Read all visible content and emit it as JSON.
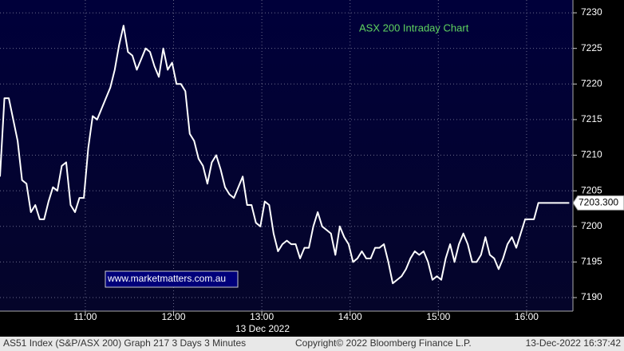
{
  "chart_data": {
    "type": "line",
    "title": "ASX 200 Intraday Chart",
    "watermark": "www.marketmatters.com.au",
    "x_axis_date": "13 Dec 2022",
    "footer": {
      "left": "AS51 Index (S&P/ASX 200) Graph 217 3 Days 3 Minutes",
      "center": "Copyright© 2022 Bloomberg Finance L.P.",
      "right": "13-Dec-2022 16:37:42"
    },
    "last_value": {
      "value": 7203.3,
      "label": "7203.300"
    },
    "grid": true,
    "color": "#ffffff",
    "x": [
      602,
      605,
      608,
      611,
      614,
      617,
      620,
      623,
      626,
      629,
      632,
      635,
      638,
      641,
      644,
      647,
      650,
      653,
      656,
      659,
      662,
      665,
      668,
      671,
      674,
      677,
      680,
      683,
      686,
      689,
      692,
      695,
      698,
      701,
      704,
      707,
      710,
      713,
      716,
      719,
      722,
      725,
      728,
      731,
      734,
      737,
      740,
      743,
      746,
      749,
      752,
      755,
      758,
      761,
      764,
      767,
      770,
      773,
      776,
      779,
      782,
      785,
      788,
      791,
      794,
      797,
      800,
      803,
      806,
      809,
      812,
      815,
      818,
      821,
      824,
      827,
      830,
      833,
      836,
      839,
      842,
      845,
      848,
      851,
      854,
      857,
      860,
      863,
      866,
      869,
      872,
      875,
      878,
      881,
      884,
      887,
      890,
      893,
      896,
      899,
      902,
      905,
      908,
      911,
      914,
      917,
      920,
      923,
      926,
      929,
      932,
      935,
      938,
      941,
      944,
      947,
      950,
      953,
      956,
      959,
      962,
      965,
      968,
      971,
      974,
      977,
      980,
      983,
      986,
      989
    ],
    "values": [
      7207,
      7218,
      7218,
      7215,
      7212,
      7206.5,
      7206,
      7202,
      7203,
      7201,
      7201,
      7203.5,
      7205.5,
      7205,
      7208.5,
      7209,
      7203,
      7202,
      7204,
      7204,
      7211,
      7215.5,
      7215,
      7216.5,
      7218,
      7219.5,
      7222,
      7225.5,
      7228.2,
      7224.5,
      7224,
      7222,
      7223.5,
      7225,
      7224.5,
      7222.5,
      7221,
      7225,
      7222,
      7223,
      7220,
      7220,
      7219,
      7213,
      7212,
      7209.5,
      7208.5,
      7206,
      7209,
      7210,
      7208,
      7205.5,
      7204.5,
      7204,
      7205.5,
      7207,
      7203,
      7203,
      7200.5,
      7200,
      7203.5,
      7203,
      7199,
      7196.5,
      7197.5,
      7198,
      7197.5,
      7197.5,
      7195.5,
      7197,
      7197,
      7200,
      7202,
      7200,
      7199.5,
      7199,
      7196,
      7200,
      7198.5,
      7197.5,
      7195,
      7195.5,
      7196.5,
      7195.5,
      7195.5,
      7197,
      7197,
      7197.5,
      7195,
      7192,
      7192.5,
      7193,
      7194,
      7195.5,
      7196.5,
      7196,
      7196.5,
      7195,
      7192.5,
      7193,
      7192.5,
      7195.5,
      7197.5,
      7195,
      7197.5,
      7199,
      7197.5,
      7195,
      7195,
      7196,
      7198.5,
      7196,
      7195.5,
      7194,
      7195.5,
      7197.5,
      7198.5,
      7197,
      7199,
      7201,
      7201,
      7201,
      7203.3,
      7203.3,
      7203.3,
      7203.3,
      7203.3,
      7203.3,
      7203.3,
      7203.3
    ],
    "xlim": [
      602,
      991.5
    ],
    "xticks": [
      {
        "value": 660,
        "label": "11:00"
      },
      {
        "value": 720,
        "label": "12:00"
      },
      {
        "value": 780,
        "label": "13:00"
      },
      {
        "value": 840,
        "label": "14:00"
      },
      {
        "value": 900,
        "label": "15:00"
      },
      {
        "value": 960,
        "label": "16:00"
      }
    ],
    "ylim": [
      7188.1,
      7231.8
    ],
    "yticks": [
      7190,
      7195,
      7200,
      7205,
      7210,
      7215,
      7220,
      7225,
      7230
    ]
  }
}
